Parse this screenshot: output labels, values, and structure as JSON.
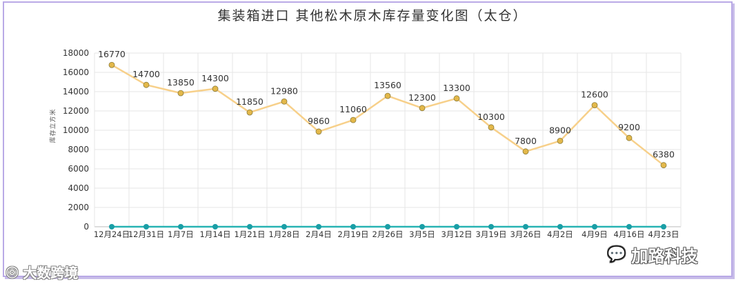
{
  "chart_data": {
    "type": "line",
    "title": "集装箱进口  其他松木原木库存量变化图（太仓）",
    "ylabel": "库存立方米",
    "xlabel": "",
    "ylim": [
      0,
      18000
    ],
    "yticks": [
      0,
      2000,
      4000,
      6000,
      8000,
      10000,
      12000,
      14000,
      16000,
      18000
    ],
    "grid": true,
    "categories": [
      "12月24日",
      "12月31日",
      "1月7日",
      "1月14日",
      "1月21日",
      "1月28日",
      "2月4日",
      "2月19日",
      "2月26日",
      "3月5日",
      "3月12日",
      "3月19日",
      "3月26日",
      "4月2日",
      "4月9日",
      "4月16日",
      "4月23日"
    ],
    "series": [
      {
        "values": [
          16770,
          14700,
          13850,
          14300,
          11850,
          12980,
          9860,
          11060,
          13560,
          12300,
          13300,
          10300,
          7800,
          8900,
          12600,
          9200,
          6380
        ],
        "color": "#f7d08a",
        "marker_color": "#e3b84a",
        "labels": true
      },
      {
        "values": [
          0,
          0,
          0,
          0,
          0,
          0,
          0,
          0,
          0,
          0,
          0,
          0,
          0,
          0,
          0,
          0,
          0
        ],
        "color": "#27b3b3",
        "marker_color": "#1a9ea6",
        "labels": false
      }
    ]
  },
  "watermarks": {
    "right_text": "加路科技",
    "right_icon": "wechat-icon",
    "left_text": "大数跨境",
    "left_icon": "logo-icon"
  }
}
